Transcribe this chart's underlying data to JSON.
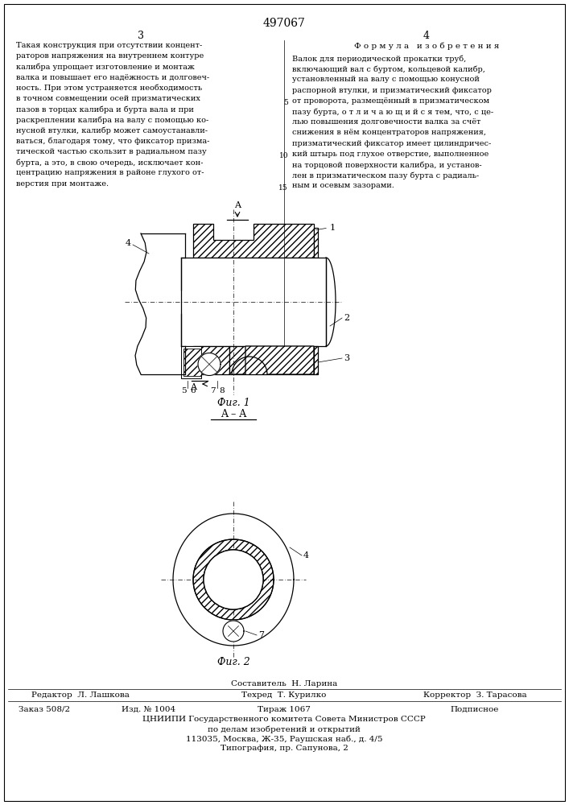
{
  "patent_number": "497067",
  "page_left": "3",
  "page_right": "4",
  "left_column_text": [
    "Такая конструкция при отсутствии концент-",
    "раторов напряжения на внутреннем контуре",
    "калибра упрощает изготовление и монтаж",
    "валка и повышает его надёжность и долговеч-",
    "ность. При этом устраняется необходимость",
    "в точном совмещении осей призматических",
    "пазов в торцах калибра и бурта вала и при",
    "раскреплении калибра на валу с помощью ко-",
    "нусной втулки, калибр может самоустанавли-",
    "ваться, благодаря тому, что фиксатор призма-",
    "тической частью скользит в радиальном пазу",
    "бурта, а это, в свою очередь, исключает кон-",
    "центрацию напряжения в районе глухого от-",
    "верстия при монтаже."
  ],
  "right_header": "Ф о р м у л а   и з о б р е т е н и я",
  "right_column_text": [
    "Валок для периодической прокатки труб,",
    "включающий вал с буртом, кольцевой калибр,",
    "установленный на валу с помощью конусной",
    "распорной втулки, и призматический фиксатор",
    "от проворота, размещённый в призматическом",
    "пазу бурта, о т л и ч а ю щ и й с я тем, что, с це-",
    "лью повышения долговечности валка за счёт",
    "снижения в нём концентраторов напряжения,",
    "призматический фиксатор имеет цилиндричес-",
    "кий штырь под глухое отверстие, выполненное",
    "на торцовой поверхности калибра, и установ-",
    "лен в призматическом пазу бурта с радиаль-",
    "ным и осевым зазорами."
  ],
  "line_numbers_idx": [
    4,
    9,
    12
  ],
  "line_numbers_val": [
    "5",
    "10",
    "15"
  ],
  "fig1_label": "Фиг. 1",
  "fig2_label": "A – A",
  "fig3_label": "Фиг. 2",
  "footer_sestavitel": "Составитель  Н. Ларина",
  "footer_redaktor": "Редактор  Л. Лашкова",
  "footer_tehred": "Техред  Т. Курилко",
  "footer_korrektor": "Корректор  З. Тарасова",
  "footer_zakaz": "Заказ 508/2",
  "footer_izd": "Изд. № 1004",
  "footer_tirazh": "Тираж 1067",
  "footer_podpisnoe": "Подписное",
  "footer_tsnipi": "ЦНИИПИ Государственного комитета Совета Министров СССР",
  "footer_po_delam": "по делам изобретений и открытий",
  "footer_address": "113035, Москва, Ж-35, Раушская наб., д. 4/5",
  "footer_tipografiya": "Типография, пр. Сапунова, 2",
  "bg_color": "#ffffff",
  "text_color": "#000000"
}
